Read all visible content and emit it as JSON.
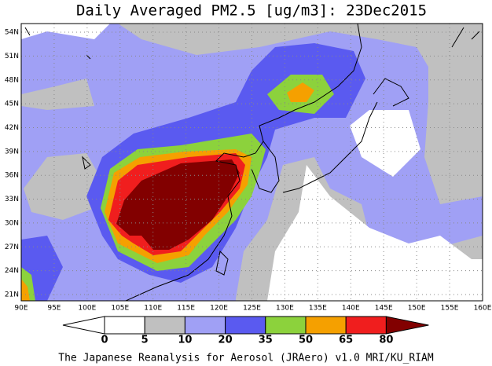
{
  "title": "Daily Averaged PM2.5 [ug/m3]: 23Dec2015",
  "lat_labels": [
    "21N",
    "24N",
    "27N",
    "30N",
    "33N",
    "36N",
    "39N",
    "42N",
    "45N",
    "48N",
    "51N",
    "54N"
  ],
  "lon_labels": [
    "90E",
    "95E",
    "100E",
    "105E",
    "110E",
    "115E",
    "120E",
    "125E",
    "130E",
    "135E",
    "140E",
    "145E",
    "150E",
    "155E",
    "160E"
  ],
  "colorbar": {
    "levels": [
      0,
      5,
      10,
      20,
      35,
      50,
      65,
      80
    ],
    "colors": [
      "#ffffff",
      "#ffffff",
      "#c0c0c0",
      "#a0a0f5",
      "#5a5af0",
      "#8cd23c",
      "#f5a000",
      "#f01e1e",
      "#820000"
    ]
  },
  "footer": "The Japanese Reanalysis for Aerosol (JRAero) v1.0 MRI/KU_RIAM"
}
